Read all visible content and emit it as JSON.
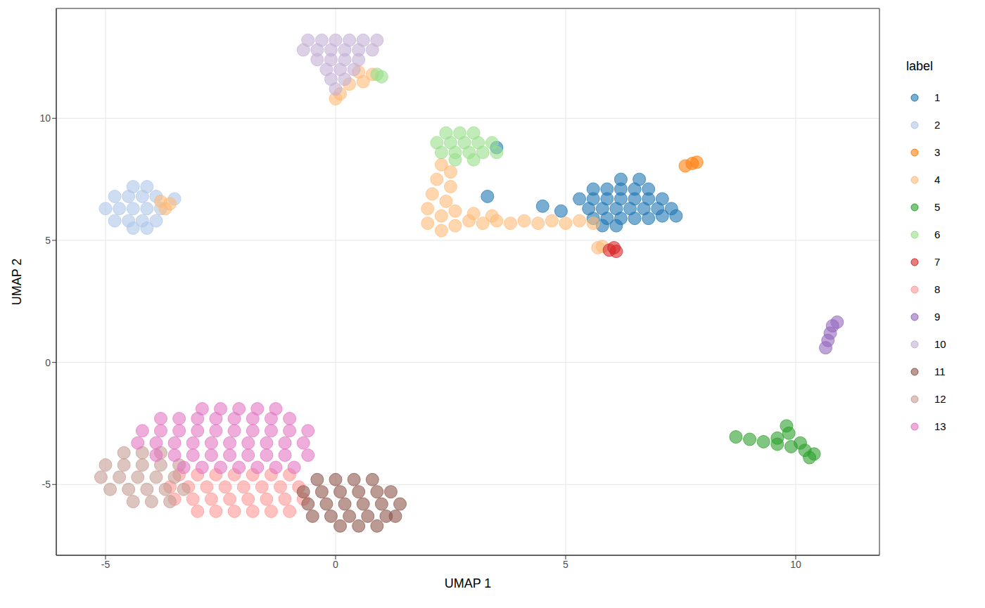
{
  "chart_data": {
    "type": "scatter",
    "x_label": "UMAP 1",
    "y_label": "UMAP 2",
    "legend_title": "label",
    "legend": "right",
    "grid": true,
    "marker": "circle",
    "xlim": [
      -6.07,
      11.82
    ],
    "ylim": [
      -7.9,
      14.5
    ],
    "xticks": [
      -5,
      0,
      5,
      10
    ],
    "yticks": [
      -5,
      0,
      5,
      10
    ],
    "series": [
      {
        "name": "1",
        "color": "#1f77b4",
        "points": [
          [
            6.2,
            7.5
          ],
          [
            6.6,
            7.5
          ],
          [
            5.6,
            7.1
          ],
          [
            5.9,
            7.1
          ],
          [
            6.2,
            7.1
          ],
          [
            6.5,
            7.1
          ],
          [
            6.8,
            7.1
          ],
          [
            5.3,
            6.7
          ],
          [
            5.6,
            6.7
          ],
          [
            5.9,
            6.7
          ],
          [
            6.2,
            6.7
          ],
          [
            6.5,
            6.7
          ],
          [
            6.8,
            6.7
          ],
          [
            7.1,
            6.7
          ],
          [
            5.5,
            6.3
          ],
          [
            5.8,
            6.3
          ],
          [
            6.1,
            6.3
          ],
          [
            6.4,
            6.3
          ],
          [
            6.7,
            6.3
          ],
          [
            7.0,
            6.3
          ],
          [
            7.3,
            6.3
          ],
          [
            5.6,
            5.9
          ],
          [
            5.9,
            5.9
          ],
          [
            6.2,
            5.9
          ],
          [
            6.5,
            5.9
          ],
          [
            6.8,
            5.9
          ],
          [
            7.1,
            6.0
          ],
          [
            7.4,
            6.0
          ],
          [
            5.8,
            5.6
          ],
          [
            6.1,
            5.6
          ],
          [
            3.5,
            8.8
          ],
          [
            3.3,
            6.8
          ],
          [
            4.5,
            6.4
          ],
          [
            4.9,
            6.2
          ]
        ]
      },
      {
        "name": "2",
        "color": "#aec7e8",
        "points": [
          [
            -4.4,
            7.2
          ],
          [
            -4.1,
            7.2
          ],
          [
            -4.8,
            6.8
          ],
          [
            -4.5,
            6.8
          ],
          [
            -4.2,
            6.8
          ],
          [
            -3.9,
            6.8
          ],
          [
            -3.5,
            6.7
          ],
          [
            -5.0,
            6.3
          ],
          [
            -4.7,
            6.3
          ],
          [
            -4.4,
            6.3
          ],
          [
            -4.1,
            6.3
          ],
          [
            -3.8,
            6.3
          ],
          [
            -4.8,
            5.8
          ],
          [
            -4.5,
            5.8
          ],
          [
            -4.2,
            5.8
          ],
          [
            -3.9,
            5.8
          ],
          [
            -4.4,
            5.5
          ],
          [
            -4.1,
            5.5
          ]
        ]
      },
      {
        "name": "3",
        "color": "#ff7f0e",
        "points": [
          [
            7.6,
            8.05
          ],
          [
            7.75,
            8.15
          ],
          [
            7.85,
            8.2
          ]
        ]
      },
      {
        "name": "4",
        "color": "#ffbb78",
        "points": [
          [
            2.3,
            8.1
          ],
          [
            2.5,
            7.8
          ],
          [
            2.2,
            7.5
          ],
          [
            2.5,
            7.2
          ],
          [
            2.1,
            6.9
          ],
          [
            2.4,
            6.6
          ],
          [
            2.0,
            6.3
          ],
          [
            2.3,
            6.0
          ],
          [
            2.6,
            6.2
          ],
          [
            2.0,
            5.7
          ],
          [
            2.3,
            5.4
          ],
          [
            2.6,
            5.6
          ],
          [
            2.9,
            5.8
          ],
          [
            3.2,
            5.7
          ],
          [
            3.5,
            5.8
          ],
          [
            3.8,
            5.7
          ],
          [
            4.1,
            5.8
          ],
          [
            4.4,
            5.7
          ],
          [
            4.7,
            5.8
          ],
          [
            5.0,
            5.7
          ],
          [
            5.3,
            5.8
          ],
          [
            5.6,
            5.7
          ],
          [
            3.0,
            6.1
          ],
          [
            3.4,
            6.0
          ],
          [
            5.8,
            4.75
          ],
          [
            5.7,
            4.7
          ],
          [
            0.5,
            11.9
          ],
          [
            0.8,
            11.8
          ],
          [
            0.3,
            11.4
          ],
          [
            0.6,
            11.5
          ],
          [
            0.1,
            11.0
          ],
          [
            0.0,
            10.8
          ],
          [
            -3.8,
            6.6
          ],
          [
            -3.6,
            6.5
          ],
          [
            -3.7,
            6.3
          ]
        ]
      },
      {
        "name": "5",
        "color": "#2ca02c",
        "points": [
          [
            8.7,
            -3.05
          ],
          [
            9.0,
            -3.15
          ],
          [
            9.3,
            -3.25
          ],
          [
            9.6,
            -3.35
          ],
          [
            9.9,
            -3.45
          ],
          [
            10.2,
            -3.6
          ],
          [
            10.4,
            -3.75
          ],
          [
            9.8,
            -2.6
          ],
          [
            9.85,
            -2.9
          ],
          [
            10.1,
            -3.3
          ],
          [
            9.6,
            -3.1
          ],
          [
            10.3,
            -3.9
          ]
        ]
      },
      {
        "name": "6",
        "color": "#98df8a",
        "points": [
          [
            2.4,
            9.4
          ],
          [
            2.7,
            9.4
          ],
          [
            3.0,
            9.4
          ],
          [
            2.2,
            9.0
          ],
          [
            2.5,
            9.0
          ],
          [
            2.8,
            9.0
          ],
          [
            3.1,
            9.0
          ],
          [
            3.4,
            9.0
          ],
          [
            2.3,
            8.6
          ],
          [
            2.6,
            8.6
          ],
          [
            2.9,
            8.6
          ],
          [
            3.2,
            8.6
          ],
          [
            3.5,
            8.6
          ],
          [
            2.6,
            8.3
          ],
          [
            3.0,
            8.3
          ],
          [
            0.9,
            11.8
          ],
          [
            1.0,
            11.7
          ]
        ]
      },
      {
        "name": "7",
        "color": "#d62728",
        "points": [
          [
            5.95,
            4.6
          ],
          [
            6.1,
            4.55
          ],
          [
            6.05,
            4.7
          ]
        ]
      },
      {
        "name": "8",
        "color": "#ff9896",
        "points": [
          [
            -3.4,
            -4.6
          ],
          [
            -3.0,
            -4.6
          ],
          [
            -2.6,
            -4.6
          ],
          [
            -2.2,
            -4.6
          ],
          [
            -1.8,
            -4.6
          ],
          [
            -1.4,
            -4.6
          ],
          [
            -1.0,
            -4.6
          ],
          [
            -3.6,
            -5.1
          ],
          [
            -3.2,
            -5.1
          ],
          [
            -2.8,
            -5.1
          ],
          [
            -2.4,
            -5.1
          ],
          [
            -2.0,
            -5.1
          ],
          [
            -1.6,
            -5.1
          ],
          [
            -1.2,
            -5.1
          ],
          [
            -0.8,
            -5.1
          ],
          [
            -3.5,
            -5.6
          ],
          [
            -3.1,
            -5.6
          ],
          [
            -2.7,
            -5.6
          ],
          [
            -2.3,
            -5.6
          ],
          [
            -1.9,
            -5.6
          ],
          [
            -1.5,
            -5.6
          ],
          [
            -1.1,
            -5.6
          ],
          [
            -0.7,
            -5.6
          ],
          [
            -3.0,
            -6.1
          ],
          [
            -2.6,
            -6.1
          ],
          [
            -2.2,
            -6.1
          ],
          [
            -1.8,
            -6.1
          ],
          [
            -1.4,
            -6.1
          ],
          [
            -1.0,
            -6.1
          ]
        ]
      },
      {
        "name": "9",
        "color": "#9467bd",
        "points": [
          [
            10.65,
            0.6
          ],
          [
            10.7,
            0.9
          ],
          [
            10.75,
            1.2
          ],
          [
            10.8,
            1.5
          ],
          [
            10.9,
            1.65
          ]
        ]
      },
      {
        "name": "10",
        "color": "#c5b0d5",
        "points": [
          [
            -0.6,
            13.2
          ],
          [
            -0.3,
            13.2
          ],
          [
            0.0,
            13.2
          ],
          [
            0.3,
            13.2
          ],
          [
            0.6,
            13.2
          ],
          [
            0.9,
            13.2
          ],
          [
            -0.7,
            12.8
          ],
          [
            -0.4,
            12.8
          ],
          [
            -0.1,
            12.8
          ],
          [
            0.2,
            12.8
          ],
          [
            0.5,
            12.8
          ],
          [
            0.8,
            12.8
          ],
          [
            -0.4,
            12.4
          ],
          [
            -0.1,
            12.4
          ],
          [
            0.2,
            12.4
          ],
          [
            0.5,
            12.4
          ],
          [
            -0.2,
            12.0
          ],
          [
            0.1,
            12.0
          ],
          [
            0.4,
            12.0
          ],
          [
            -0.1,
            11.6
          ],
          [
            0.2,
            11.6
          ],
          [
            0.0,
            11.2
          ]
        ]
      },
      {
        "name": "11",
        "color": "#8c564b",
        "points": [
          [
            -0.4,
            -4.8
          ],
          [
            0.0,
            -4.8
          ],
          [
            0.4,
            -4.8
          ],
          [
            0.8,
            -4.8
          ],
          [
            -0.7,
            -5.3
          ],
          [
            -0.3,
            -5.3
          ],
          [
            0.1,
            -5.3
          ],
          [
            0.5,
            -5.3
          ],
          [
            0.9,
            -5.3
          ],
          [
            1.2,
            -5.3
          ],
          [
            -0.6,
            -5.8
          ],
          [
            -0.2,
            -5.8
          ],
          [
            0.2,
            -5.8
          ],
          [
            0.6,
            -5.8
          ],
          [
            1.0,
            -5.8
          ],
          [
            1.4,
            -5.8
          ],
          [
            -0.5,
            -6.3
          ],
          [
            -0.1,
            -6.3
          ],
          [
            0.3,
            -6.3
          ],
          [
            0.7,
            -6.3
          ],
          [
            1.1,
            -6.3
          ],
          [
            1.3,
            -6.3
          ],
          [
            0.1,
            -6.7
          ],
          [
            0.5,
            -6.7
          ],
          [
            0.9,
            -6.7
          ]
        ]
      },
      {
        "name": "12",
        "color": "#c49c94",
        "points": [
          [
            -4.6,
            -3.7
          ],
          [
            -4.2,
            -3.7
          ],
          [
            -3.8,
            -3.7
          ],
          [
            -5.0,
            -4.2
          ],
          [
            -4.6,
            -4.2
          ],
          [
            -4.2,
            -4.2
          ],
          [
            -3.8,
            -4.2
          ],
          [
            -3.4,
            -4.2
          ],
          [
            -5.1,
            -4.7
          ],
          [
            -4.7,
            -4.7
          ],
          [
            -4.3,
            -4.7
          ],
          [
            -3.9,
            -4.7
          ],
          [
            -3.5,
            -4.7
          ],
          [
            -4.9,
            -5.2
          ],
          [
            -4.5,
            -5.2
          ],
          [
            -4.1,
            -5.2
          ],
          [
            -3.7,
            -5.2
          ],
          [
            -3.3,
            -5.2
          ],
          [
            -4.4,
            -5.7
          ],
          [
            -4.0,
            -5.7
          ],
          [
            -3.6,
            -5.7
          ]
        ]
      },
      {
        "name": "13",
        "color": "#e377c2",
        "points": [
          [
            -2.9,
            -1.9
          ],
          [
            -2.5,
            -1.9
          ],
          [
            -2.1,
            -1.9
          ],
          [
            -1.7,
            -1.9
          ],
          [
            -1.3,
            -1.9
          ],
          [
            -3.8,
            -2.3
          ],
          [
            -3.4,
            -2.3
          ],
          [
            -3.0,
            -2.3
          ],
          [
            -2.6,
            -2.3
          ],
          [
            -2.2,
            -2.3
          ],
          [
            -1.8,
            -2.3
          ],
          [
            -1.4,
            -2.3
          ],
          [
            -1.0,
            -2.3
          ],
          [
            -4.2,
            -2.8
          ],
          [
            -3.8,
            -2.8
          ],
          [
            -3.4,
            -2.8
          ],
          [
            -3.0,
            -2.8
          ],
          [
            -2.6,
            -2.8
          ],
          [
            -2.2,
            -2.8
          ],
          [
            -1.8,
            -2.8
          ],
          [
            -1.4,
            -2.8
          ],
          [
            -1.0,
            -2.8
          ],
          [
            -0.6,
            -2.8
          ],
          [
            -4.3,
            -3.3
          ],
          [
            -3.9,
            -3.3
          ],
          [
            -3.5,
            -3.3
          ],
          [
            -3.1,
            -3.3
          ],
          [
            -2.7,
            -3.3
          ],
          [
            -2.3,
            -3.3
          ],
          [
            -1.9,
            -3.3
          ],
          [
            -1.5,
            -3.3
          ],
          [
            -1.1,
            -3.3
          ],
          [
            -0.7,
            -3.3
          ],
          [
            -3.9,
            -3.8
          ],
          [
            -3.5,
            -3.8
          ],
          [
            -3.1,
            -3.8
          ],
          [
            -2.7,
            -3.8
          ],
          [
            -2.3,
            -3.8
          ],
          [
            -1.9,
            -3.8
          ],
          [
            -1.5,
            -3.8
          ],
          [
            -1.1,
            -3.8
          ],
          [
            -0.6,
            -3.8
          ],
          [
            -3.3,
            -4.3
          ],
          [
            -2.9,
            -4.3
          ],
          [
            -2.5,
            -4.3
          ],
          [
            -2.1,
            -4.3
          ],
          [
            -1.7,
            -4.3
          ],
          [
            -1.3,
            -4.3
          ],
          [
            -0.9,
            -4.3
          ]
        ]
      }
    ]
  }
}
